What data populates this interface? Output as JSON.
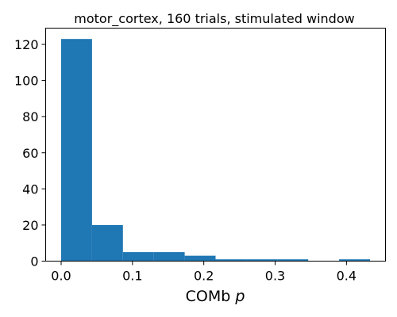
{
  "chart_data": {
    "type": "bar",
    "subtype": "histogram",
    "title": "motor_cortex, 160 trials, stimulated window",
    "xlabel": "COMb",
    "xlabel_italic_suffix": "p",
    "ylabel": "",
    "bin_edges": [
      0.0,
      0.0433,
      0.0866,
      0.1299,
      0.1732,
      0.2165,
      0.2598,
      0.3031,
      0.3464,
      0.3897,
      0.433
    ],
    "values": [
      123,
      20,
      5,
      5,
      3,
      1,
      1,
      1,
      0,
      1
    ],
    "xlim": [
      -0.0217,
      0.4547
    ],
    "ylim": [
      0,
      129
    ],
    "xticks": [
      0.0,
      0.1,
      0.2,
      0.3,
      0.4
    ],
    "xtick_labels": [
      "0.0",
      "0.1",
      "0.2",
      "0.3",
      "0.4"
    ],
    "yticks": [
      0,
      20,
      40,
      60,
      80,
      100,
      120
    ],
    "ytick_labels": [
      "0",
      "20",
      "40",
      "60",
      "80",
      "100",
      "120"
    ],
    "grid": false,
    "bar_color": "#1f77b4"
  }
}
